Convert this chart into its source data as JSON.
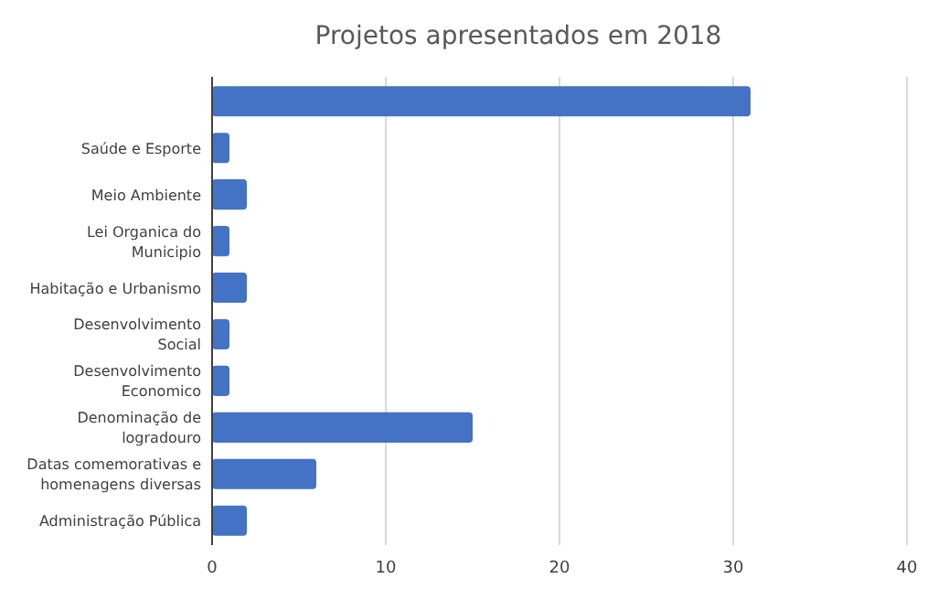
{
  "chart_data": {
    "type": "bar",
    "orientation": "horizontal",
    "title": "Projetos apresentados em 2018",
    "categories": [
      null,
      "Saúde e Esporte",
      "Meio Ambiente",
      "Lei Organica do Municipio",
      "Habitação e Urbanismo",
      "Desenvolvimento Social",
      "Desenvolvimento Economico",
      "Denominação de logradouro",
      "Datas comemorativas e homenagens diversas",
      "Administração Pública"
    ],
    "values": [
      31,
      1,
      2,
      1,
      2,
      1,
      1,
      15,
      6,
      2
    ],
    "color": "#4472c4",
    "xlim": [
      0,
      40
    ],
    "xticks": [
      0,
      10,
      20,
      30,
      40
    ],
    "grid": "x"
  }
}
